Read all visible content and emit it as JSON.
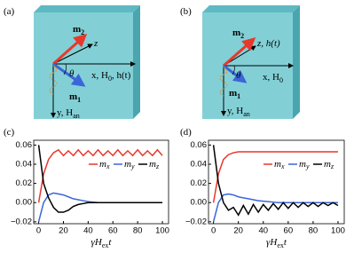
{
  "diagrams": [
    {
      "label": "(a)",
      "m2": [
        "m",
        "2"
      ],
      "z": "z",
      "theta": "θ",
      "x_axis": [
        "x, H",
        "0",
        ", h(t)"
      ],
      "m1": [
        "m",
        "1"
      ],
      "y_axis": [
        "y, H",
        "an"
      ]
    },
    {
      "label": "(b)",
      "m2": [
        "m",
        "2"
      ],
      "z": [
        "z, h(t)"
      ],
      "theta": "θ",
      "x_axis": [
        "x, H",
        "0"
      ],
      "m1": [
        "m",
        "1"
      ],
      "y_axis": [
        "y, H",
        "an"
      ]
    }
  ],
  "chart_data": [
    {
      "type": "line",
      "label": "(c)",
      "xlabel": [
        "γH",
        "ex",
        "t"
      ],
      "x": [
        0,
        4,
        8,
        12,
        16,
        20,
        24,
        28,
        32,
        36,
        40,
        44,
        48,
        52,
        56,
        60,
        64,
        68,
        72,
        76,
        80,
        84,
        88,
        92,
        96,
        100
      ],
      "series": [
        {
          "name": "m",
          "subscript": "x",
          "color": "#e8372b",
          "values": [
            0,
            0.03,
            0.045,
            0.052,
            0.055,
            0.049,
            0.054,
            0.049,
            0.055,
            0.049,
            0.054,
            0.049,
            0.055,
            0.049,
            0.054,
            0.049,
            0.055,
            0.049,
            0.054,
            0.049,
            0.055,
            0.049,
            0.054,
            0.049,
            0.055,
            0.049
          ]
        },
        {
          "name": "m",
          "subscript": "y",
          "color": "#3a66d8",
          "values": [
            -0.02,
            0,
            0.008,
            0.01,
            0.009,
            0.008,
            0.006,
            0.004,
            0.003,
            0.002,
            0.001,
            0.0005,
            0,
            0,
            0,
            0,
            0,
            0,
            0,
            0,
            0,
            0,
            0,
            0,
            0,
            0
          ]
        },
        {
          "name": "m",
          "subscript": "z",
          "color": "#000000",
          "values": [
            0.06,
            0.02,
            0.005,
            -0.005,
            -0.01,
            -0.01,
            -0.008,
            -0.004,
            -0.002,
            -0.001,
            0,
            0,
            0,
            0,
            0,
            0,
            0,
            0,
            0,
            0,
            0,
            0,
            0,
            0,
            0,
            0
          ]
        }
      ],
      "xlim": [
        -4,
        105
      ],
      "ylim": [
        -0.022,
        0.065
      ],
      "xticks": [
        0,
        20,
        40,
        60,
        80,
        100
      ],
      "yticks": [
        {
          "value": -0.02,
          "label": "−0.02"
        },
        {
          "value": 0,
          "label": "0.00"
        },
        {
          "value": 0.02,
          "label": "0.02"
        },
        {
          "value": 0.04,
          "label": "0.04"
        },
        {
          "value": 0.06,
          "label": "0.06"
        }
      ]
    },
    {
      "type": "line",
      "label": "(d)",
      "xlabel": [
        "γH",
        "ex",
        "t"
      ],
      "x": [
        0,
        4,
        8,
        12,
        16,
        20,
        24,
        28,
        32,
        36,
        40,
        44,
        48,
        52,
        56,
        60,
        64,
        68,
        72,
        76,
        80,
        84,
        88,
        92,
        96,
        100
      ],
      "series": [
        {
          "name": "m",
          "subscript": "x",
          "color": "#e8372b",
          "values": [
            0,
            0.03,
            0.045,
            0.05,
            0.052,
            0.053,
            0.053,
            0.053,
            0.053,
            0.053,
            0.053,
            0.053,
            0.053,
            0.053,
            0.053,
            0.053,
            0.053,
            0.053,
            0.053,
            0.053,
            0.053,
            0.053,
            0.053,
            0.053,
            0.053,
            0.053
          ]
        },
        {
          "name": "m",
          "subscript": "y",
          "color": "#3a66d8",
          "values": [
            -0.02,
            0,
            0.008,
            0.009,
            0.008,
            0.006,
            0.005,
            0.004,
            0.003,
            0.002,
            0.0015,
            0.001,
            0.0005,
            0,
            0,
            0,
            0,
            0,
            0,
            0,
            0,
            0,
            0,
            0,
            0,
            0
          ]
        },
        {
          "name": "m",
          "subscript": "z",
          "color": "#000000",
          "values": [
            0.06,
            0.02,
            0,
            -0.008,
            -0.005,
            -0.013,
            -0.003,
            -0.012,
            -0.002,
            -0.01,
            -0.002,
            -0.008,
            -0.001,
            -0.007,
            0,
            -0.006,
            0,
            -0.005,
            0,
            -0.004,
            0,
            -0.004,
            0,
            -0.003,
            0,
            -0.003
          ]
        }
      ],
      "xlim": [
        -4,
        105
      ],
      "ylim": [
        -0.022,
        0.065
      ],
      "xticks": [
        0,
        20,
        40,
        60,
        80,
        100
      ],
      "yticks": [
        {
          "value": -0.02,
          "label": "−0.02"
        },
        {
          "value": 0,
          "label": "0.00"
        },
        {
          "value": 0.02,
          "label": "0.02"
        },
        {
          "value": 0.04,
          "label": "0.04"
        },
        {
          "value": 0.06,
          "label": "0.06"
        }
      ]
    }
  ]
}
